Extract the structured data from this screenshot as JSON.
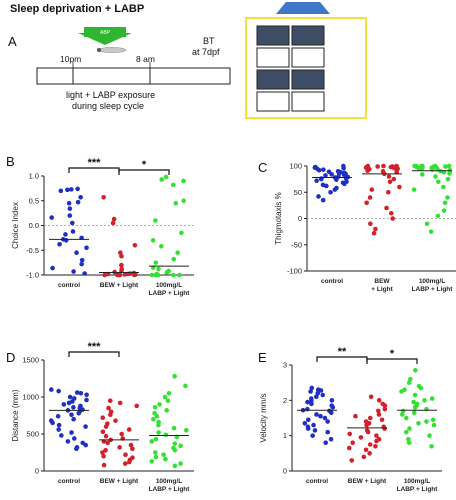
{
  "colors": {
    "blue": "#1f2fc4",
    "red": "#d4202a",
    "green": "#33e133",
    "arrow_green": "#2fb52f",
    "highlight_box": "#f2e33c",
    "plate_fill": "#3d4d66",
    "indicator": "#3f78c8"
  },
  "schematic": {
    "title": "Sleep deprivation + LABP",
    "panel_letter": "A",
    "arrow_label": "ABP",
    "time_start": "10pm",
    "time_end": "8 am",
    "bt_line1": "BT",
    "bt_line2": "at 7dpf",
    "exposure_line1": "light + LABP exposure",
    "exposure_line2": "during sleep cycle",
    "plate_cells": [
      "filled",
      "filled",
      "empty",
      "empty",
      "filled",
      "filled",
      "empty",
      "empty"
    ]
  },
  "chart_data": [
    {
      "panel": "B",
      "type": "scatter",
      "ylabel": "Choice Index",
      "ylim": [
        -1.0,
        1.0
      ],
      "yticks": [
        -1.0,
        -0.5,
        0.0,
        0.5,
        1.0
      ],
      "ytick_labels": [
        "-1.0",
        "-0.5",
        "0.0",
        "0.5",
        "1.0"
      ],
      "zero_line": true,
      "categories": [
        "control",
        "BEW + Light",
        "100mg/L\nLABP + Light"
      ],
      "means": [
        -0.28,
        -0.95,
        -0.82
      ],
      "series": [
        {
          "color": "blue",
          "values": [
            0.74,
            0.73,
            0.72,
            0.7,
            0.57,
            0.47,
            0.45,
            0.34,
            0.2,
            0.16,
            0.05,
            -0.12,
            -0.18,
            -0.25,
            -0.28,
            -0.3,
            -0.38,
            -0.45,
            -0.55,
            -0.7,
            -0.78,
            -0.86,
            -0.93,
            -0.97
          ]
        },
        {
          "color": "red",
          "values": [
            0.57,
            0.13,
            0.05,
            -0.4,
            -0.55,
            -0.62,
            -0.8,
            -0.88,
            -0.92,
            -0.94,
            -0.96,
            -0.97,
            -0.98,
            -0.98,
            -0.99,
            -0.99,
            -1.0,
            -1.0,
            -1.0,
            -1.0,
            -1.0,
            -1.0
          ]
        },
        {
          "color": "green",
          "values": [
            0.98,
            0.93,
            0.9,
            0.82,
            0.5,
            0.45,
            0.1,
            -0.15,
            -0.3,
            -0.42,
            -0.55,
            -0.68,
            -0.75,
            -0.85,
            -0.88,
            -0.92,
            -0.95,
            -0.98,
            -1.0,
            -1.0,
            -1.0,
            -1.0,
            -1.0
          ]
        }
      ],
      "significance": [
        {
          "from": 0,
          "to": 1,
          "label": "***"
        },
        {
          "from": 1,
          "to": 2,
          "label": "*"
        }
      ]
    },
    {
      "panel": "C",
      "type": "scatter",
      "ylabel": "Thigmotaxis %",
      "ylim": [
        -100,
        100
      ],
      "yticks": [
        -100,
        -50,
        0,
        50,
        100
      ],
      "ytick_labels": [
        "-100",
        "-50",
        "0",
        "50",
        "100"
      ],
      "zero_line": true,
      "categories": [
        "control",
        "BEW\n+ Light",
        "100mg/L\nLABP + Light"
      ],
      "means": [
        78,
        85,
        91
      ],
      "series": [
        {
          "color": "blue",
          "values": [
            100,
            98,
            97,
            96,
            95,
            93,
            92,
            90,
            89,
            88,
            87,
            86,
            85,
            84,
            83,
            82,
            81,
            80,
            79,
            78,
            77,
            76,
            75,
            74,
            72,
            70,
            68,
            66,
            64,
            62,
            58,
            55,
            50,
            42,
            35
          ]
        },
        {
          "color": "red",
          "values": [
            100,
            100,
            100,
            99,
            99,
            98,
            97,
            96,
            95,
            94,
            93,
            91,
            90,
            88,
            85,
            80,
            75,
            70,
            60,
            55,
            50,
            40,
            30,
            20,
            10,
            0,
            -10,
            -20,
            -28
          ]
        },
        {
          "color": "green",
          "values": [
            100,
            100,
            100,
            100,
            100,
            100,
            99,
            99,
            98,
            98,
            97,
            97,
            96,
            95,
            94,
            93,
            92,
            90,
            88,
            86,
            84,
            80,
            75,
            70,
            60,
            55,
            40,
            30,
            15,
            5,
            -10,
            -25
          ]
        }
      ]
    },
    {
      "panel": "D",
      "type": "scatter",
      "ylabel": "Distance (mm)",
      "ylim": [
        0,
        1500
      ],
      "yticks": [
        0,
        500,
        1000,
        1500
      ],
      "ytick_labels": [
        "0",
        "500",
        "1000",
        "1500"
      ],
      "zero_line": false,
      "categories": [
        "control",
        "BEW + Light",
        "100mg/L\nLABP + Light"
      ],
      "means": [
        820,
        420,
        480
      ],
      "series": [
        {
          "color": "blue",
          "values": [
            1100,
            1080,
            1060,
            1050,
            1030,
            1000,
            980,
            960,
            940,
            920,
            900,
            880,
            860,
            850,
            830,
            820,
            800,
            780,
            760,
            740,
            700,
            680,
            650,
            620,
            600,
            560,
            520,
            480,
            440,
            400,
            380,
            350,
            320,
            300
          ]
        },
        {
          "color": "red",
          "values": [
            950,
            920,
            880,
            850,
            800,
            760,
            720,
            680,
            640,
            600,
            560,
            530,
            500,
            470,
            440,
            420,
            400,
            380,
            350,
            320,
            300,
            280,
            250,
            220,
            200,
            180,
            150,
            120,
            100,
            80
          ]
        },
        {
          "color": "green",
          "values": [
            1280,
            1150,
            1050,
            1000,
            950,
            900,
            860,
            820,
            780,
            740,
            700,
            660,
            620,
            580,
            550,
            520,
            490,
            460,
            430,
            400,
            370,
            340,
            310,
            280,
            250,
            220,
            190,
            160,
            130,
            100,
            70
          ]
        }
      ],
      "significance": [
        {
          "from": 0,
          "to": 1,
          "label": "***"
        }
      ]
    },
    {
      "panel": "E",
      "type": "scatter",
      "ylabel": "Velocity mm/s",
      "ylim": [
        0,
        3
      ],
      "yticks": [
        0,
        1,
        2,
        3
      ],
      "ytick_labels": [
        "0",
        "1",
        "2",
        "3"
      ],
      "zero_line": false,
      "categories": [
        "control",
        "BEW + Light",
        "100mg/L\nLABP + Light"
      ],
      "means": [
        1.72,
        1.22,
        1.72
      ],
      "series": [
        {
          "color": "blue",
          "values": [
            2.35,
            2.3,
            2.28,
            2.25,
            2.2,
            2.15,
            2.1,
            2.05,
            2.0,
            1.98,
            1.95,
            1.9,
            1.85,
            1.8,
            1.75,
            1.72,
            1.7,
            1.65,
            1.6,
            1.55,
            1.5,
            1.45,
            1.4,
            1.35,
            1.3,
            1.25,
            1.2,
            1.15,
            1.1,
            1.0,
            0.9,
            0.8
          ]
        },
        {
          "color": "red",
          "values": [
            2.1,
            2.0,
            1.9,
            1.85,
            1.75,
            1.7,
            1.6,
            1.55,
            1.5,
            1.45,
            1.4,
            1.35,
            1.3,
            1.25,
            1.2,
            1.15,
            1.1,
            1.05,
            1.0,
            0.95,
            0.9,
            0.85,
            0.8,
            0.75,
            0.7,
            0.65,
            0.6,
            0.5,
            0.4,
            0.3
          ]
        },
        {
          "color": "green",
          "values": [
            2.85,
            2.6,
            2.5,
            2.4,
            2.35,
            2.3,
            2.25,
            2.15,
            2.05,
            2.0,
            1.95,
            1.9,
            1.85,
            1.8,
            1.75,
            1.7,
            1.65,
            1.6,
            1.5,
            1.45,
            1.4,
            1.35,
            1.3,
            1.2,
            1.1,
            1.0,
            0.9,
            0.8,
            0.7
          ]
        }
      ],
      "significance": [
        {
          "from": 0,
          "to": 1,
          "label": "**"
        },
        {
          "from": 1,
          "to": 2,
          "label": "*"
        }
      ]
    }
  ]
}
